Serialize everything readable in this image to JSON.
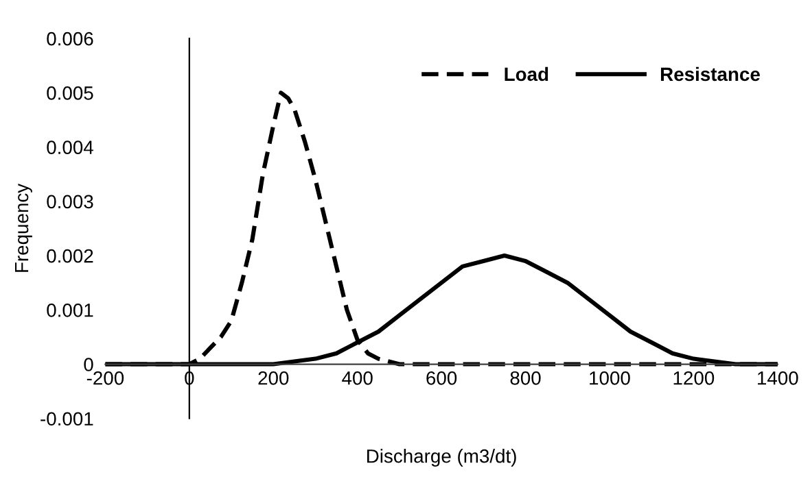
{
  "chart_data": {
    "type": "line",
    "xlabel": "Discharge (m3/dt)",
    "ylabel": "Frequency",
    "xlim": [
      -200,
      1400
    ],
    "xticks": [
      -200,
      0,
      200,
      400,
      600,
      800,
      1000,
      1200,
      1400
    ],
    "ylim": [
      -0.001,
      0.006
    ],
    "yticks": [
      -0.001,
      0,
      0.001,
      0.002,
      0.003,
      0.004,
      0.005,
      0.006
    ],
    "legend": "top right",
    "marker": "none",
    "series": [
      {
        "name": "Load",
        "color": "#000000",
        "line_style": "dashed",
        "x": [
          -200,
          -100,
          0,
          25,
          50,
          75,
          100,
          125,
          150,
          175,
          200,
          218,
          235,
          250,
          275,
          300,
          325,
          350,
          375,
          400,
          425,
          450,
          500,
          600,
          800,
          1000,
          1200,
          1400
        ],
        "values": [
          0,
          0,
          0,
          0.0001,
          0.0003,
          0.0005,
          0.0008,
          0.0015,
          0.0023,
          0.0035,
          0.0044,
          0.005,
          0.0049,
          0.0047,
          0.0041,
          0.0034,
          0.0026,
          0.0018,
          0.001,
          0.00045,
          0.0002,
          0.0001,
          0,
          0,
          0,
          0,
          0,
          0
        ]
      },
      {
        "name": "Resistance",
        "color": "#000000",
        "line_style": "solid",
        "x": [
          -200,
          0,
          200,
          300,
          350,
          400,
          450,
          500,
          550,
          600,
          650,
          700,
          750,
          800,
          850,
          900,
          950,
          1000,
          1050,
          1100,
          1150,
          1200,
          1300,
          1400
        ],
        "values": [
          0,
          0,
          0,
          0.0001,
          0.0002,
          0.0004,
          0.0006,
          0.0009,
          0.0012,
          0.0015,
          0.0018,
          0.0019,
          0.002,
          0.0019,
          0.0017,
          0.0015,
          0.0012,
          0.0009,
          0.0006,
          0.0004,
          0.0002,
          0.0001,
          0,
          0
        ]
      }
    ]
  }
}
